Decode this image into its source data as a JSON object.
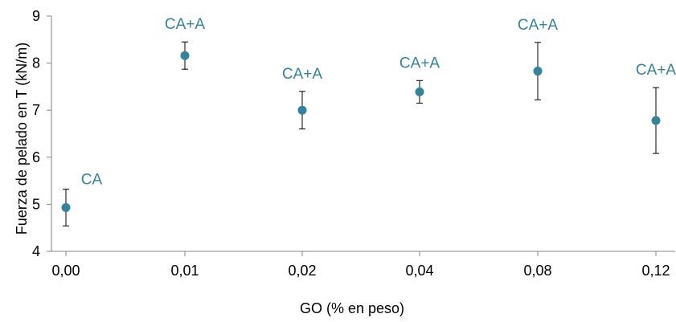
{
  "chart_data": {
    "type": "scatter",
    "title": "",
    "xlabel": "GO (% en peso)",
    "ylabel": "Fuerza de pelado en T (kN/m)",
    "ylim": [
      4,
      9
    ],
    "yticks": [
      "4",
      "5",
      "6",
      "7",
      "8",
      "9"
    ],
    "categories": [
      "0,00",
      "0,01",
      "0,02",
      "0,04",
      "0,08",
      "0,12"
    ],
    "values": [
      4.93,
      8.16,
      7.0,
      7.39,
      7.83,
      6.78
    ],
    "errors": [
      0.39,
      0.29,
      0.4,
      0.24,
      0.61,
      0.7
    ],
    "annotations": [
      "CA",
      "CA+A",
      "CA+A",
      "CA+A",
      "CA+A",
      "CA+A"
    ],
    "marker_color": "#31849B",
    "annotation_color": "#31849B",
    "grid": false,
    "legend": "none"
  }
}
